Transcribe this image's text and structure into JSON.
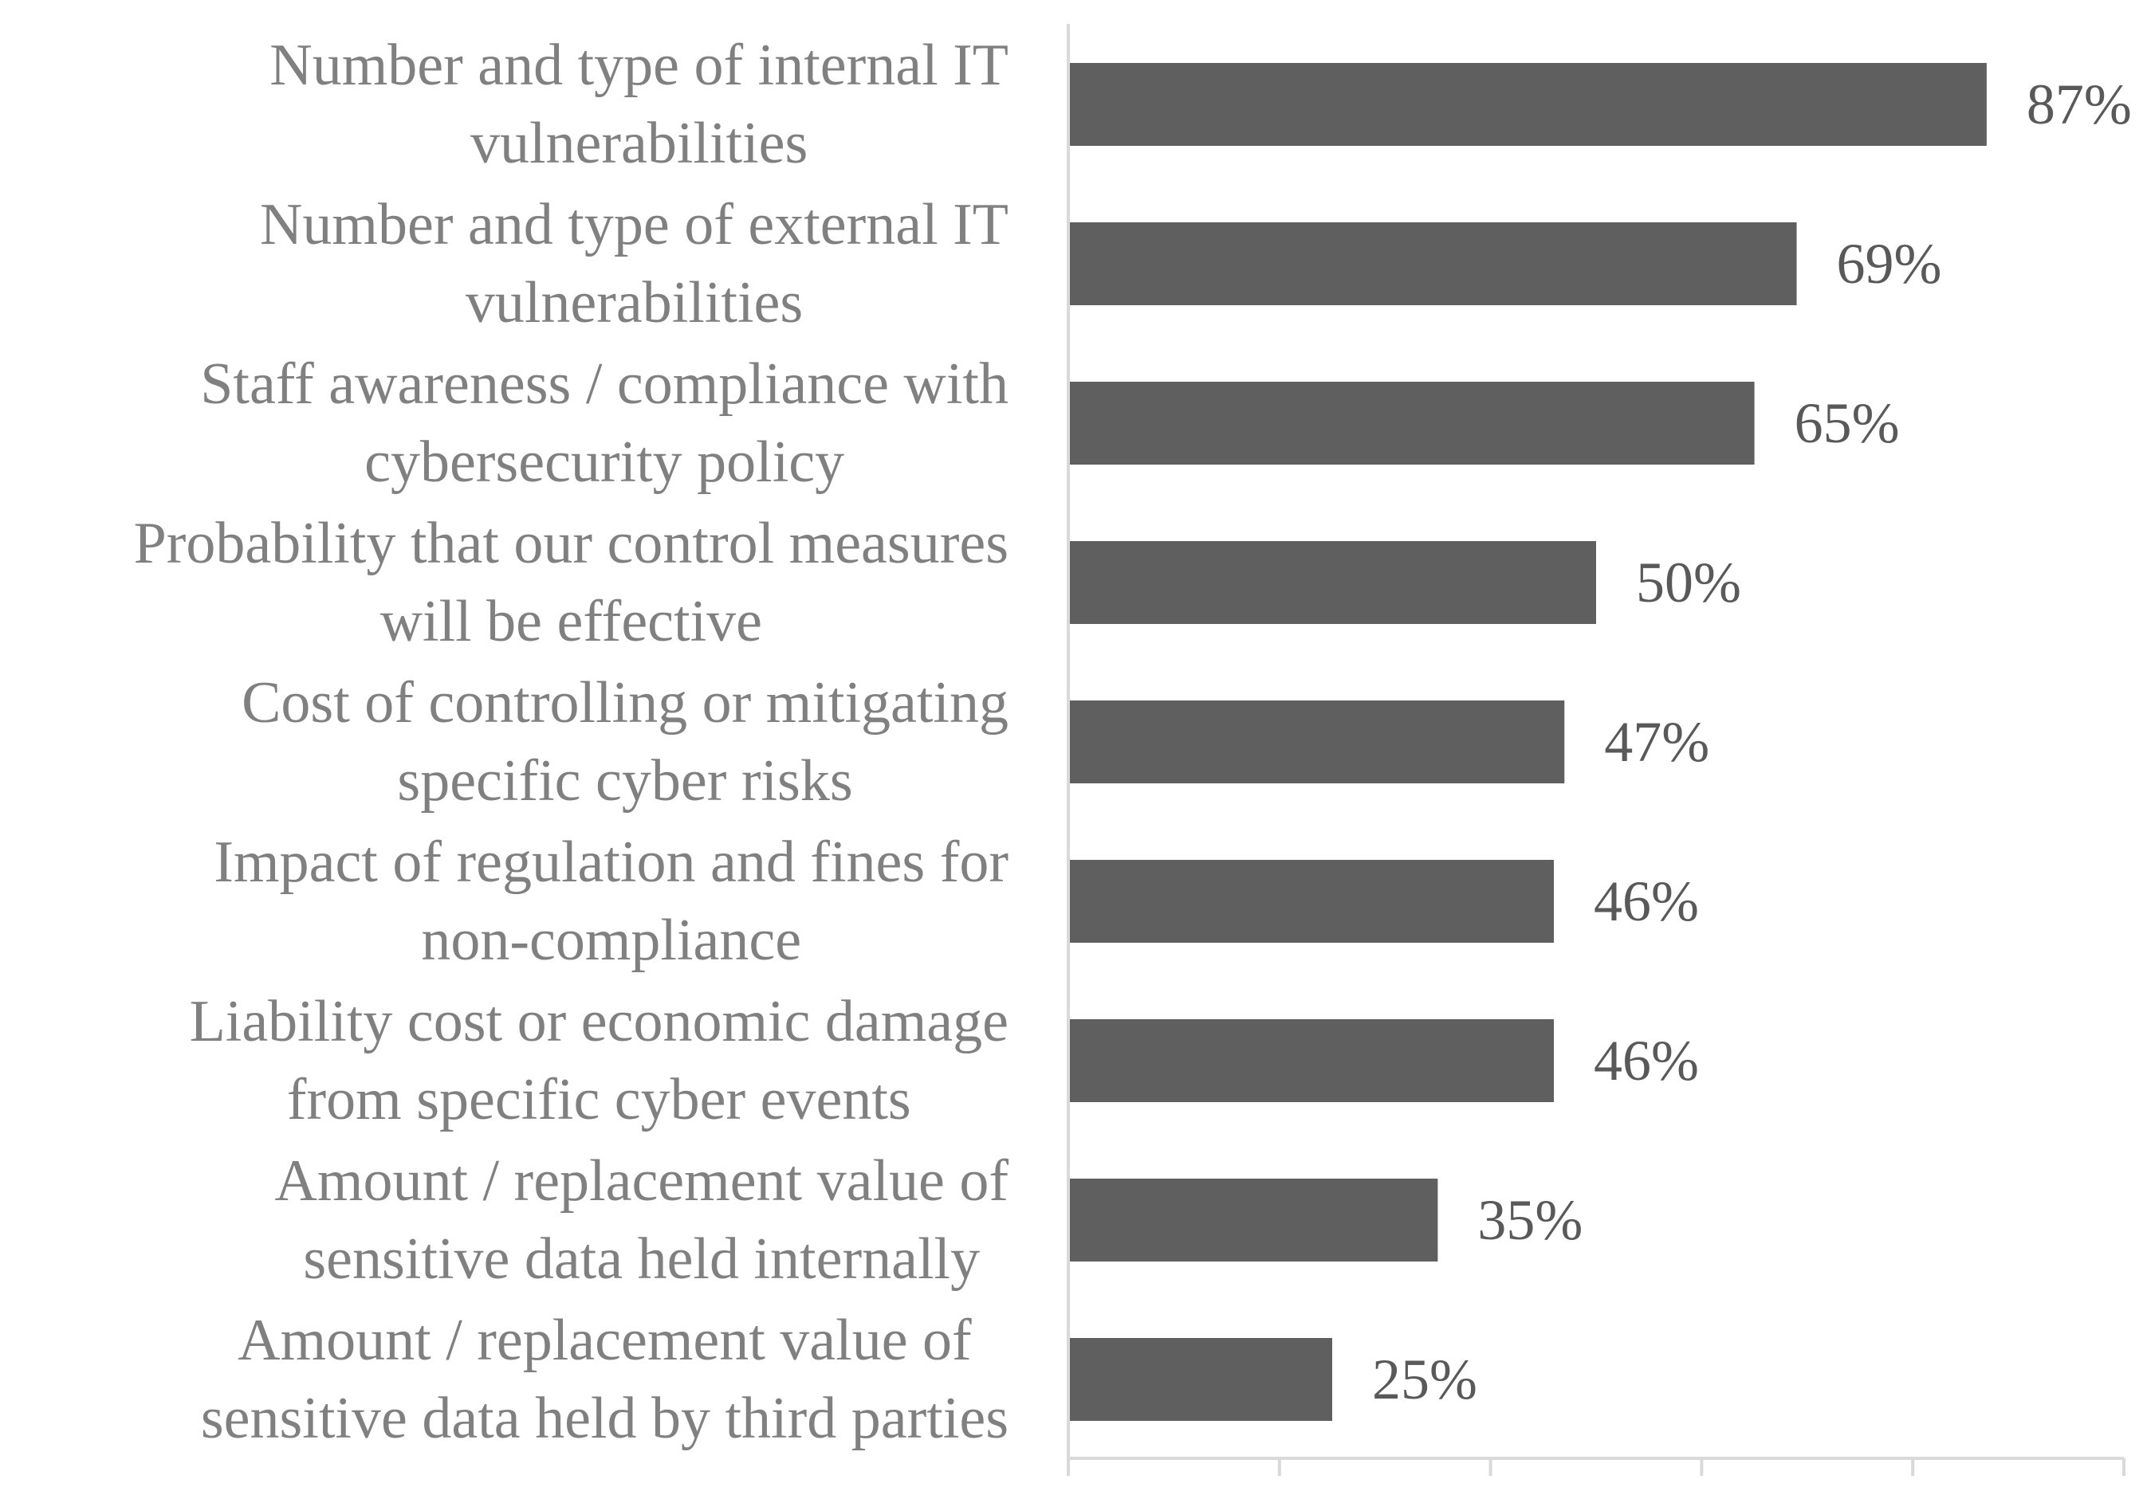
{
  "chart_data": {
    "type": "bar",
    "orientation": "horizontal",
    "title": "",
    "xlabel": "",
    "ylabel": "",
    "categories": [
      [
        "Number and type of internal IT",
        "vulnerabilities"
      ],
      [
        "Number and type of external IT",
        "vulnerabilities"
      ],
      [
        "Staff awareness / compliance with",
        "cybersecurity policy"
      ],
      [
        "Probability that our control measures",
        "will be effective"
      ],
      [
        "Cost of controlling or mitigating",
        "specific cyber risks"
      ],
      [
        "Impact of regulation and fines for",
        "non-compliance"
      ],
      [
        "Liability cost or economic damage",
        "from specific cyber events"
      ],
      [
        "Amount / replacement value of",
        "sensitive data held internally"
      ],
      [
        "Amount / replacement value of",
        "sensitive data held by third parties"
      ]
    ],
    "values": [
      87,
      69,
      65,
      50,
      47,
      46,
      46,
      35,
      25
    ],
    "value_labels": [
      "87%",
      "69%",
      "65%",
      "50%",
      "47%",
      "46%",
      "46%",
      "35%",
      "25%"
    ],
    "xlim": [
      0,
      100
    ],
    "x_ticks": [
      0,
      20,
      40,
      60,
      80,
      100
    ],
    "tick_labels_shown": false,
    "grid": false,
    "legend": "none",
    "colors": {
      "bar": "#5f5f5f",
      "axis": "#d9d9d9",
      "category_text": "#808080",
      "value_text": "#595959"
    }
  }
}
